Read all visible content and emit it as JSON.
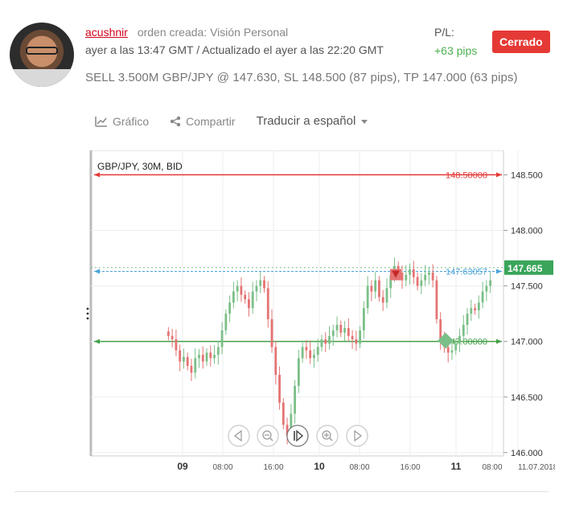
{
  "post": {
    "username": "acushnir",
    "action": "orden creada: Visión Personal",
    "time": "ayer a las 13:47 GMT / Actualizado el ayer a las 22:20 GMT",
    "trade": "SELL 3.500M GBP/JPY @ 147.630, SL 148.500 (87 pips), TP 147.000 (63 pips)",
    "pl_label": "P/L:",
    "pl_value": "+63 pips",
    "status": "Cerrado"
  },
  "toolbar": {
    "chart_label": "Gráfico",
    "share_label": "Compartir",
    "translate_label": "Traducir a español"
  },
  "chart": {
    "symbol_label": "GBP/JPY, 30M, BID",
    "sl_label": "148.50000",
    "entry_label": "147.63057",
    "tp_label": "147.00000",
    "current_price": "147.665",
    "x_tick_labels": [
      "09",
      "08:00",
      "16:00",
      "10",
      "08:00",
      "16:00",
      "11",
      "08:00",
      "11.07.2018"
    ],
    "y_tick_labels": [
      "148.500",
      "148.000",
      "147.500",
      "147.000",
      "146.500",
      "146.000"
    ],
    "colors": {
      "sl": "#e53935",
      "entry": "#4aa3d9",
      "tp": "#43a047",
      "up": "#7bbf88",
      "down": "#e57373"
    }
  },
  "chart_data": {
    "type": "candlestick",
    "title": "GBP/JPY, 30M, BID",
    "ylim": [
      145.97,
      148.72
    ],
    "y_ticks": [
      148.5,
      148.0,
      147.5,
      147.0,
      146.5,
      146.0
    ],
    "x_ticks": [
      "09",
      "08:00",
      "16:00",
      "10",
      "08:00",
      "16:00",
      "11",
      "08:00",
      "11.07.2018"
    ],
    "levels": [
      {
        "name": "SL",
        "value": 148.5
      },
      {
        "name": "Entry",
        "value": 147.63057
      },
      {
        "name": "TP",
        "value": 147.0
      }
    ],
    "current_price": 147.665,
    "close_path": [
      147.05,
      147.02,
      146.92,
      146.82,
      146.86,
      146.78,
      146.72,
      146.85,
      146.88,
      146.82,
      146.9,
      146.85,
      146.88,
      146.95,
      147.1,
      147.25,
      147.35,
      147.45,
      147.5,
      147.42,
      147.38,
      147.3,
      147.45,
      147.5,
      147.55,
      147.48,
      147.2,
      146.95,
      146.7,
      146.45,
      146.25,
      146.15,
      146.35,
      146.6,
      146.85,
      146.95,
      146.92,
      146.85,
      146.88,
      146.95,
      147.02,
      146.98,
      147.05,
      147.1,
      147.15,
      147.08,
      147.12,
      147.05,
      147.02,
      146.98,
      147.1,
      147.3,
      147.5,
      147.45,
      147.55,
      147.4,
      147.35,
      147.48,
      147.6,
      147.68,
      147.62,
      147.55,
      147.6,
      147.65,
      147.58,
      147.5,
      147.55,
      147.6,
      147.62,
      147.55,
      147.2,
      147.0,
      146.95,
      146.9,
      146.92,
      146.98,
      147.05,
      147.15,
      147.25,
      147.3,
      147.28,
      147.35,
      147.45,
      147.5,
      147.55
    ]
  }
}
